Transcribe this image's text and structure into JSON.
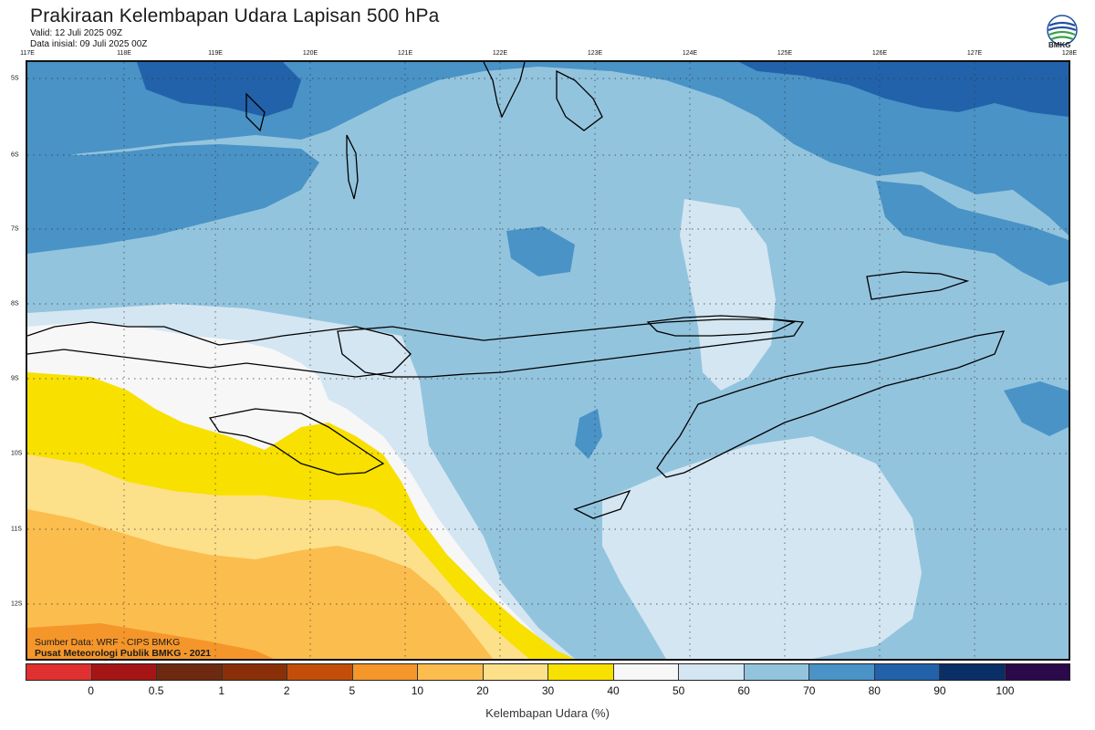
{
  "header": {
    "title": "Prakiraan Kelembapan Udara Lapisan 500 hPa",
    "valid": "Valid: 12 Juli 2025 09Z",
    "init": "Data inisial: 09 Juli 2025 00Z",
    "logo_text": "BMKG"
  },
  "axes": {
    "lon_labels": [
      "117E",
      "118E",
      "119E",
      "120E",
      "121E",
      "122E",
      "123E",
      "124E",
      "125E",
      "126E",
      "127E",
      "128E"
    ],
    "lat_labels": [
      "5S",
      "6S",
      "7S",
      "8S",
      "9S",
      "10S",
      "11S",
      "12S"
    ]
  },
  "credits": {
    "source": "Sumber Data: WRF - CIPS BMKG",
    "center": "Pusat Meteorologi Publik BMKG - 2021"
  },
  "legend": {
    "title": "Kelembapan Udara (%)",
    "ticks": [
      "0",
      "0.5",
      "1",
      "2",
      "5",
      "10",
      "20",
      "30",
      "40",
      "50",
      "60",
      "70",
      "80",
      "90",
      "100"
    ],
    "colors": [
      "#e03030",
      "#a51515",
      "#6e2a10",
      "#8a3008",
      "#c24e0a",
      "#f5962a",
      "#fbbd4e",
      "#fde08a",
      "#f8e000",
      "#f7f7f7",
      "#d4e6f2",
      "#93c4de",
      "#4a93c6",
      "#2262aa",
      "#0a2e66",
      "#2a0a4a"
    ]
  },
  "map_colors": {
    "ocean_light": "#93c4de",
    "ocean_pale": "#d4e6f2",
    "mid_blue": "#4a93c6",
    "dark_blue": "#2262aa",
    "white": "#f7f7f7",
    "yellow": "#f8e000",
    "light_yellow": "#fde08a",
    "orange_light": "#fbbd4e",
    "orange": "#f5962a",
    "coast": "#000000"
  }
}
